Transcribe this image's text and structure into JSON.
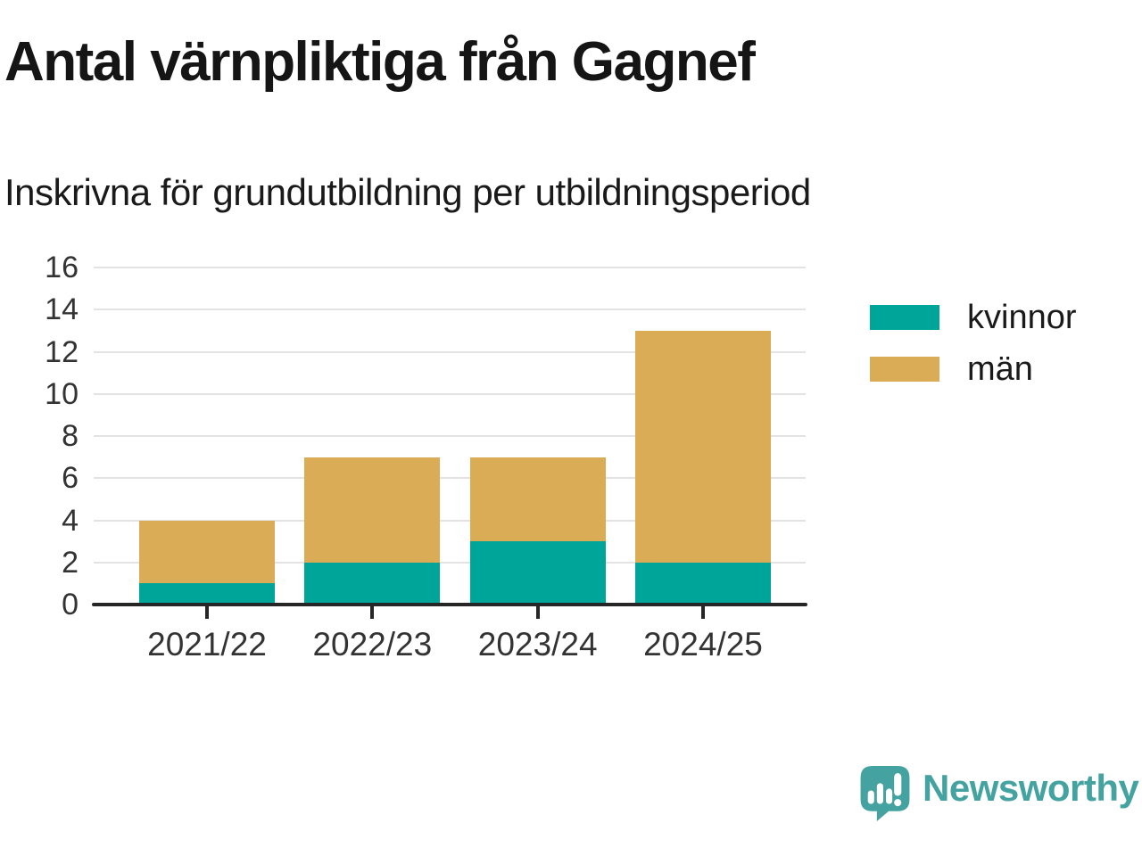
{
  "chart_data": {
    "type": "bar",
    "stacked": true,
    "title": "Antal värnpliktiga från Gagnef",
    "subtitle": "Inskrivna för grundutbildning per utbildningsperiod",
    "categories": [
      "2021/22",
      "2022/23",
      "2023/24",
      "2024/25"
    ],
    "series": [
      {
        "name": "kvinnor",
        "color": "#00A59A",
        "values": [
          1,
          2,
          3,
          2
        ]
      },
      {
        "name": "män",
        "color": "#D9AC55",
        "values": [
          3,
          5,
          4,
          11
        ]
      }
    ],
    "stack_totals": [
      4,
      7,
      7,
      13
    ],
    "xlabel": "",
    "ylabel": "",
    "ylim": [
      0,
      16
    ],
    "yticks": [
      0,
      2,
      4,
      6,
      8,
      10,
      12,
      14,
      16
    ],
    "grid": true,
    "legend_position": "right",
    "grid_color": "#e3e3e3",
    "axis_color": "#262626",
    "tick_label_color": "#333333"
  },
  "branding": {
    "logo_text": "Newsworthy",
    "logo_color": "#44A3A0",
    "logo_icon": "speech-bubble-bar-chart-icon"
  }
}
